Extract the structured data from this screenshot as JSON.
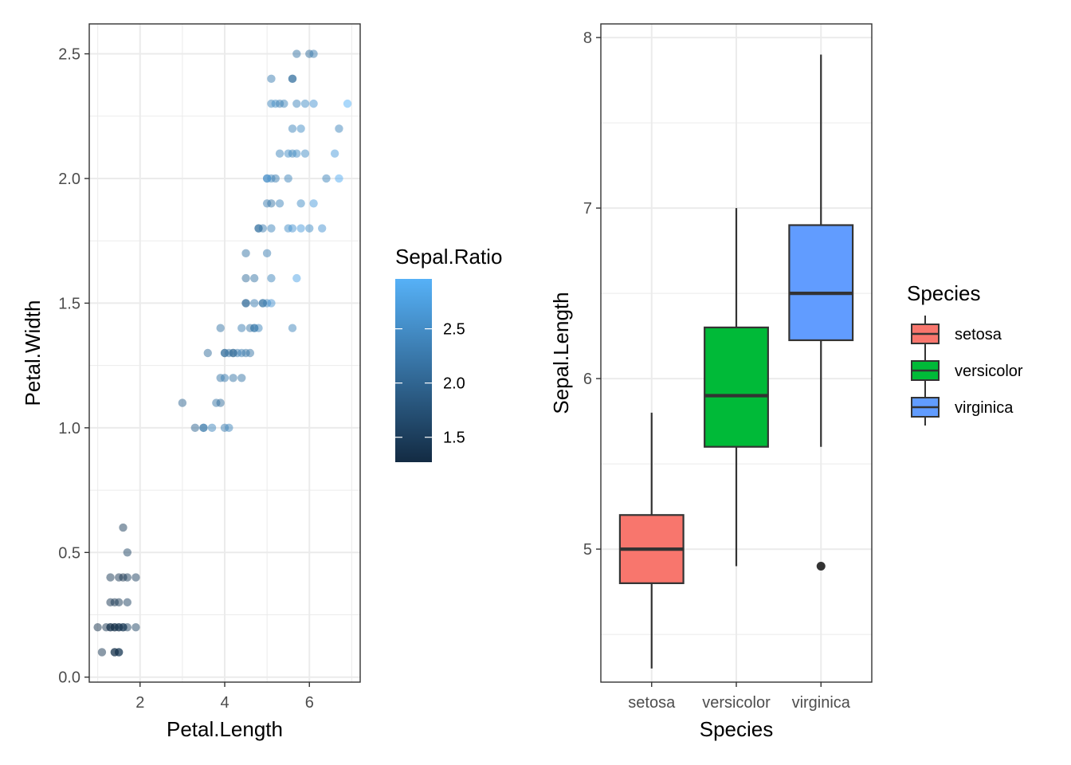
{
  "chart_data": [
    {
      "type": "scatter",
      "xlabel": "Petal.Length",
      "ylabel": "Petal.Width",
      "xlim": [
        0.8,
        7.2
      ],
      "ylim": [
        -0.02,
        2.62
      ],
      "x_ticks": [
        2,
        4,
        6
      ],
      "x_tick_labels": [
        "2",
        "4",
        "6"
      ],
      "y_ticks": [
        0,
        0.5,
        1,
        1.5,
        2,
        2.5
      ],
      "y_tick_labels": [
        "0.0",
        "0.5",
        "1.0",
        "1.5",
        "2.0",
        "2.5"
      ],
      "grid": true,
      "point_opacity": 0.5,
      "color_legend": {
        "title": "Sepal.Ratio",
        "range": [
          1.27,
          2.96
        ],
        "ticks": [
          1.5,
          2.0,
          2.5
        ],
        "tick_labels": [
          "1.5",
          "2.0",
          "2.5"
        ],
        "low_color": "#132B43",
        "high_color": "#56B1F7",
        "placement": "right"
      },
      "points": [
        [
          1.1,
          0.1,
          1.4
        ],
        [
          1.4,
          0.1,
          1.45
        ],
        [
          1.5,
          0.1,
          1.5
        ],
        [
          1.5,
          0.1,
          1.4
        ],
        [
          1.4,
          0.1,
          1.3
        ],
        [
          1.0,
          0.2,
          1.35
        ],
        [
          1.2,
          0.2,
          1.4
        ],
        [
          1.3,
          0.2,
          1.4
        ],
        [
          1.4,
          0.2,
          1.4
        ],
        [
          1.5,
          0.2,
          1.45
        ],
        [
          1.6,
          0.2,
          1.5
        ],
        [
          1.7,
          0.2,
          1.55
        ],
        [
          1.9,
          0.2,
          1.6
        ],
        [
          1.4,
          0.2,
          1.3
        ],
        [
          1.5,
          0.2,
          1.35
        ],
        [
          1.6,
          0.2,
          1.4
        ],
        [
          1.3,
          0.2,
          1.3
        ],
        [
          1.3,
          0.3,
          1.4
        ],
        [
          1.4,
          0.3,
          1.4
        ],
        [
          1.5,
          0.3,
          1.45
        ],
        [
          1.7,
          0.3,
          1.55
        ],
        [
          1.3,
          0.4,
          1.45
        ],
        [
          1.5,
          0.4,
          1.4
        ],
        [
          1.6,
          0.4,
          1.35
        ],
        [
          1.7,
          0.4,
          1.5
        ],
        [
          1.9,
          0.4,
          1.55
        ],
        [
          1.7,
          0.5,
          1.6
        ],
        [
          1.6,
          0.6,
          1.5
        ],
        [
          3.0,
          1.1,
          2.0
        ],
        [
          3.5,
          1.0,
          2.3
        ],
        [
          3.3,
          1.0,
          2.0
        ],
        [
          3.7,
          1.0,
          2.4
        ],
        [
          4.0,
          1.0,
          2.3
        ],
        [
          4.1,
          1.0,
          2.4
        ],
        [
          3.5,
          1.0,
          2.2
        ],
        [
          3.8,
          1.1,
          2.2
        ],
        [
          3.9,
          1.1,
          2.1
        ],
        [
          3.6,
          1.3,
          2.1
        ],
        [
          3.9,
          1.2,
          2.2
        ],
        [
          4.0,
          1.2,
          2.3
        ],
        [
          4.2,
          1.2,
          2.2
        ],
        [
          4.4,
          1.2,
          2.2
        ],
        [
          4.0,
          1.3,
          2.1
        ],
        [
          4.1,
          1.3,
          2.2
        ],
        [
          4.2,
          1.3,
          2.1
        ],
        [
          4.3,
          1.3,
          2.3
        ],
        [
          4.4,
          1.3,
          2.3
        ],
        [
          4.5,
          1.3,
          2.2
        ],
        [
          4.6,
          1.3,
          2.2
        ],
        [
          4.7,
          1.4,
          2.4
        ],
        [
          4.4,
          1.4,
          2.3
        ],
        [
          4.6,
          1.4,
          2.2
        ],
        [
          4.8,
          1.4,
          2.4
        ],
        [
          3.9,
          1.4,
          2.2
        ],
        [
          4.5,
          1.5,
          2.2
        ],
        [
          4.7,
          1.5,
          2.3
        ],
        [
          4.9,
          1.5,
          2.4
        ],
        [
          5.0,
          1.5,
          2.5
        ],
        [
          5.1,
          1.5,
          2.6
        ],
        [
          4.5,
          1.6,
          2.1
        ],
        [
          4.7,
          1.6,
          2.2
        ],
        [
          5.1,
          1.6,
          2.4
        ],
        [
          4.5,
          1.7,
          2.2
        ],
        [
          5.0,
          1.7,
          2.3
        ],
        [
          5.6,
          1.4,
          2.4
        ],
        [
          5.7,
          1.6,
          2.8
        ],
        [
          4.8,
          1.8,
          2.2
        ],
        [
          4.9,
          1.8,
          2.3
        ],
        [
          5.1,
          1.8,
          2.4
        ],
        [
          5.5,
          1.8,
          2.5
        ],
        [
          5.6,
          1.8,
          2.6
        ],
        [
          5.8,
          1.8,
          2.7
        ],
        [
          6.0,
          1.8,
          2.5
        ],
        [
          6.3,
          1.8,
          2.6
        ],
        [
          5.0,
          1.9,
          2.3
        ],
        [
          5.1,
          1.9,
          2.2
        ],
        [
          5.3,
          1.9,
          2.4
        ],
        [
          5.8,
          1.9,
          2.5
        ],
        [
          6.1,
          1.9,
          2.7
        ],
        [
          5.0,
          2.0,
          2.3
        ],
        [
          5.1,
          2.0,
          2.4
        ],
        [
          5.2,
          2.0,
          2.3
        ],
        [
          5.5,
          2.0,
          2.4
        ],
        [
          6.4,
          2.0,
          2.4
        ],
        [
          6.7,
          2.0,
          2.9
        ],
        [
          5.3,
          2.1,
          2.4
        ],
        [
          5.5,
          2.1,
          2.5
        ],
        [
          5.6,
          2.1,
          2.4
        ],
        [
          5.7,
          2.1,
          2.5
        ],
        [
          5.9,
          2.1,
          2.5
        ],
        [
          6.6,
          2.1,
          2.7
        ],
        [
          5.6,
          2.2,
          2.4
        ],
        [
          5.8,
          2.2,
          2.5
        ],
        [
          6.7,
          2.2,
          2.4
        ],
        [
          5.1,
          2.3,
          2.4
        ],
        [
          5.2,
          2.3,
          2.5
        ],
        [
          5.4,
          2.3,
          2.4
        ],
        [
          5.7,
          2.3,
          2.4
        ],
        [
          5.9,
          2.3,
          2.5
        ],
        [
          6.1,
          2.3,
          2.6
        ],
        [
          6.9,
          2.3,
          2.96
        ],
        [
          5.1,
          2.4,
          2.3
        ],
        [
          5.6,
          2.4,
          2.0
        ],
        [
          5.7,
          2.5,
          2.2
        ],
        [
          6.0,
          2.5,
          2.1
        ],
        [
          6.1,
          2.5,
          2.3
        ],
        [
          5.6,
          2.4,
          2.2
        ],
        [
          5.3,
          2.3,
          2.3
        ],
        [
          5.0,
          2.0,
          2.6
        ],
        [
          4.8,
          1.8,
          2.1
        ],
        [
          4.9,
          1.5,
          2.1
        ],
        [
          4.5,
          1.5,
          2.0
        ],
        [
          4.7,
          1.4,
          2.2
        ],
        [
          4.2,
          1.3,
          2.0
        ],
        [
          4.0,
          1.3,
          2.1
        ]
      ]
    },
    {
      "type": "box",
      "xlabel": "Species",
      "ylabel": "Sepal.Length",
      "categories": [
        "setosa",
        "versicolor",
        "virginica"
      ],
      "ylim": [
        4.22,
        8.08
      ],
      "y_ticks": [
        5,
        6,
        7,
        8
      ],
      "y_tick_labels": [
        "5",
        "6",
        "7",
        "8"
      ],
      "grid": true,
      "boxes": [
        {
          "name": "setosa",
          "min": 4.3,
          "q1": 4.8,
          "median": 5.0,
          "q3": 5.2,
          "max": 5.8,
          "outliers": [],
          "fill": "#F8766D"
        },
        {
          "name": "versicolor",
          "min": 4.9,
          "q1": 5.6,
          "median": 5.9,
          "q3": 6.3,
          "max": 7.0,
          "outliers": [],
          "fill": "#00BA38"
        },
        {
          "name": "virginica",
          "min": 5.6,
          "q1": 6.225,
          "median": 6.5,
          "q3": 6.9,
          "max": 7.9,
          "outliers": [
            4.9
          ],
          "fill": "#619CFF"
        }
      ],
      "legend": {
        "title": "Species",
        "placement": "right",
        "entries": [
          "setosa",
          "versicolor",
          "virginica"
        ]
      }
    }
  ]
}
